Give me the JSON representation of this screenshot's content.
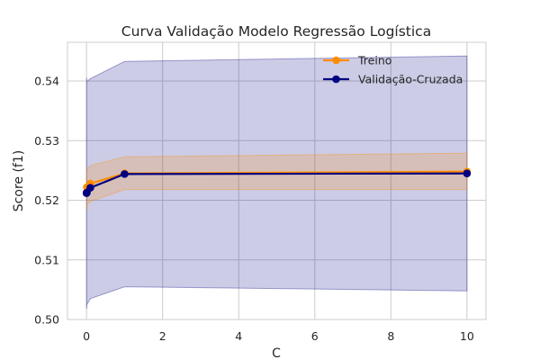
{
  "chart_data": {
    "type": "line",
    "title": "Curva Validação Modelo Regressão Logística",
    "xlabel": "C",
    "ylabel": "Score (f1)",
    "xlim": [
      -0.5,
      10.5
    ],
    "ylim": [
      0.5,
      0.5465
    ],
    "xticks": [
      0,
      2,
      4,
      6,
      8,
      10
    ],
    "xtick_labels": [
      "0",
      "2",
      "4",
      "6",
      "8",
      "10"
    ],
    "yticks": [
      0.5,
      0.51,
      0.52,
      0.53,
      0.54
    ],
    "ytick_labels": [
      "0.50",
      "0.51",
      "0.52",
      "0.53",
      "0.54"
    ],
    "grid": true,
    "legend_position": "top-right",
    "x": [
      0.001,
      0.01,
      0.1,
      1,
      10
    ],
    "series": [
      {
        "name": "Treino",
        "color": "#ff8c00",
        "values": [
          0.5213,
          0.5222,
          0.5228,
          0.5245,
          0.5248
        ],
        "band_lower": [
          0.5182,
          0.5192,
          0.5198,
          0.5218,
          0.5218
        ],
        "band_upper": [
          0.5244,
          0.5252,
          0.5258,
          0.5273,
          0.5279
        ]
      },
      {
        "name": "Validação-Cruzada",
        "color": "#000080",
        "values": [
          0.5212,
          0.5213,
          0.5221,
          0.5244,
          0.5245
        ],
        "band_lower": [
          0.5018,
          0.5025,
          0.5035,
          0.5055,
          0.5048
        ],
        "band_upper": [
          0.5405,
          0.5399,
          0.5404,
          0.5433,
          0.5442
        ]
      }
    ]
  }
}
